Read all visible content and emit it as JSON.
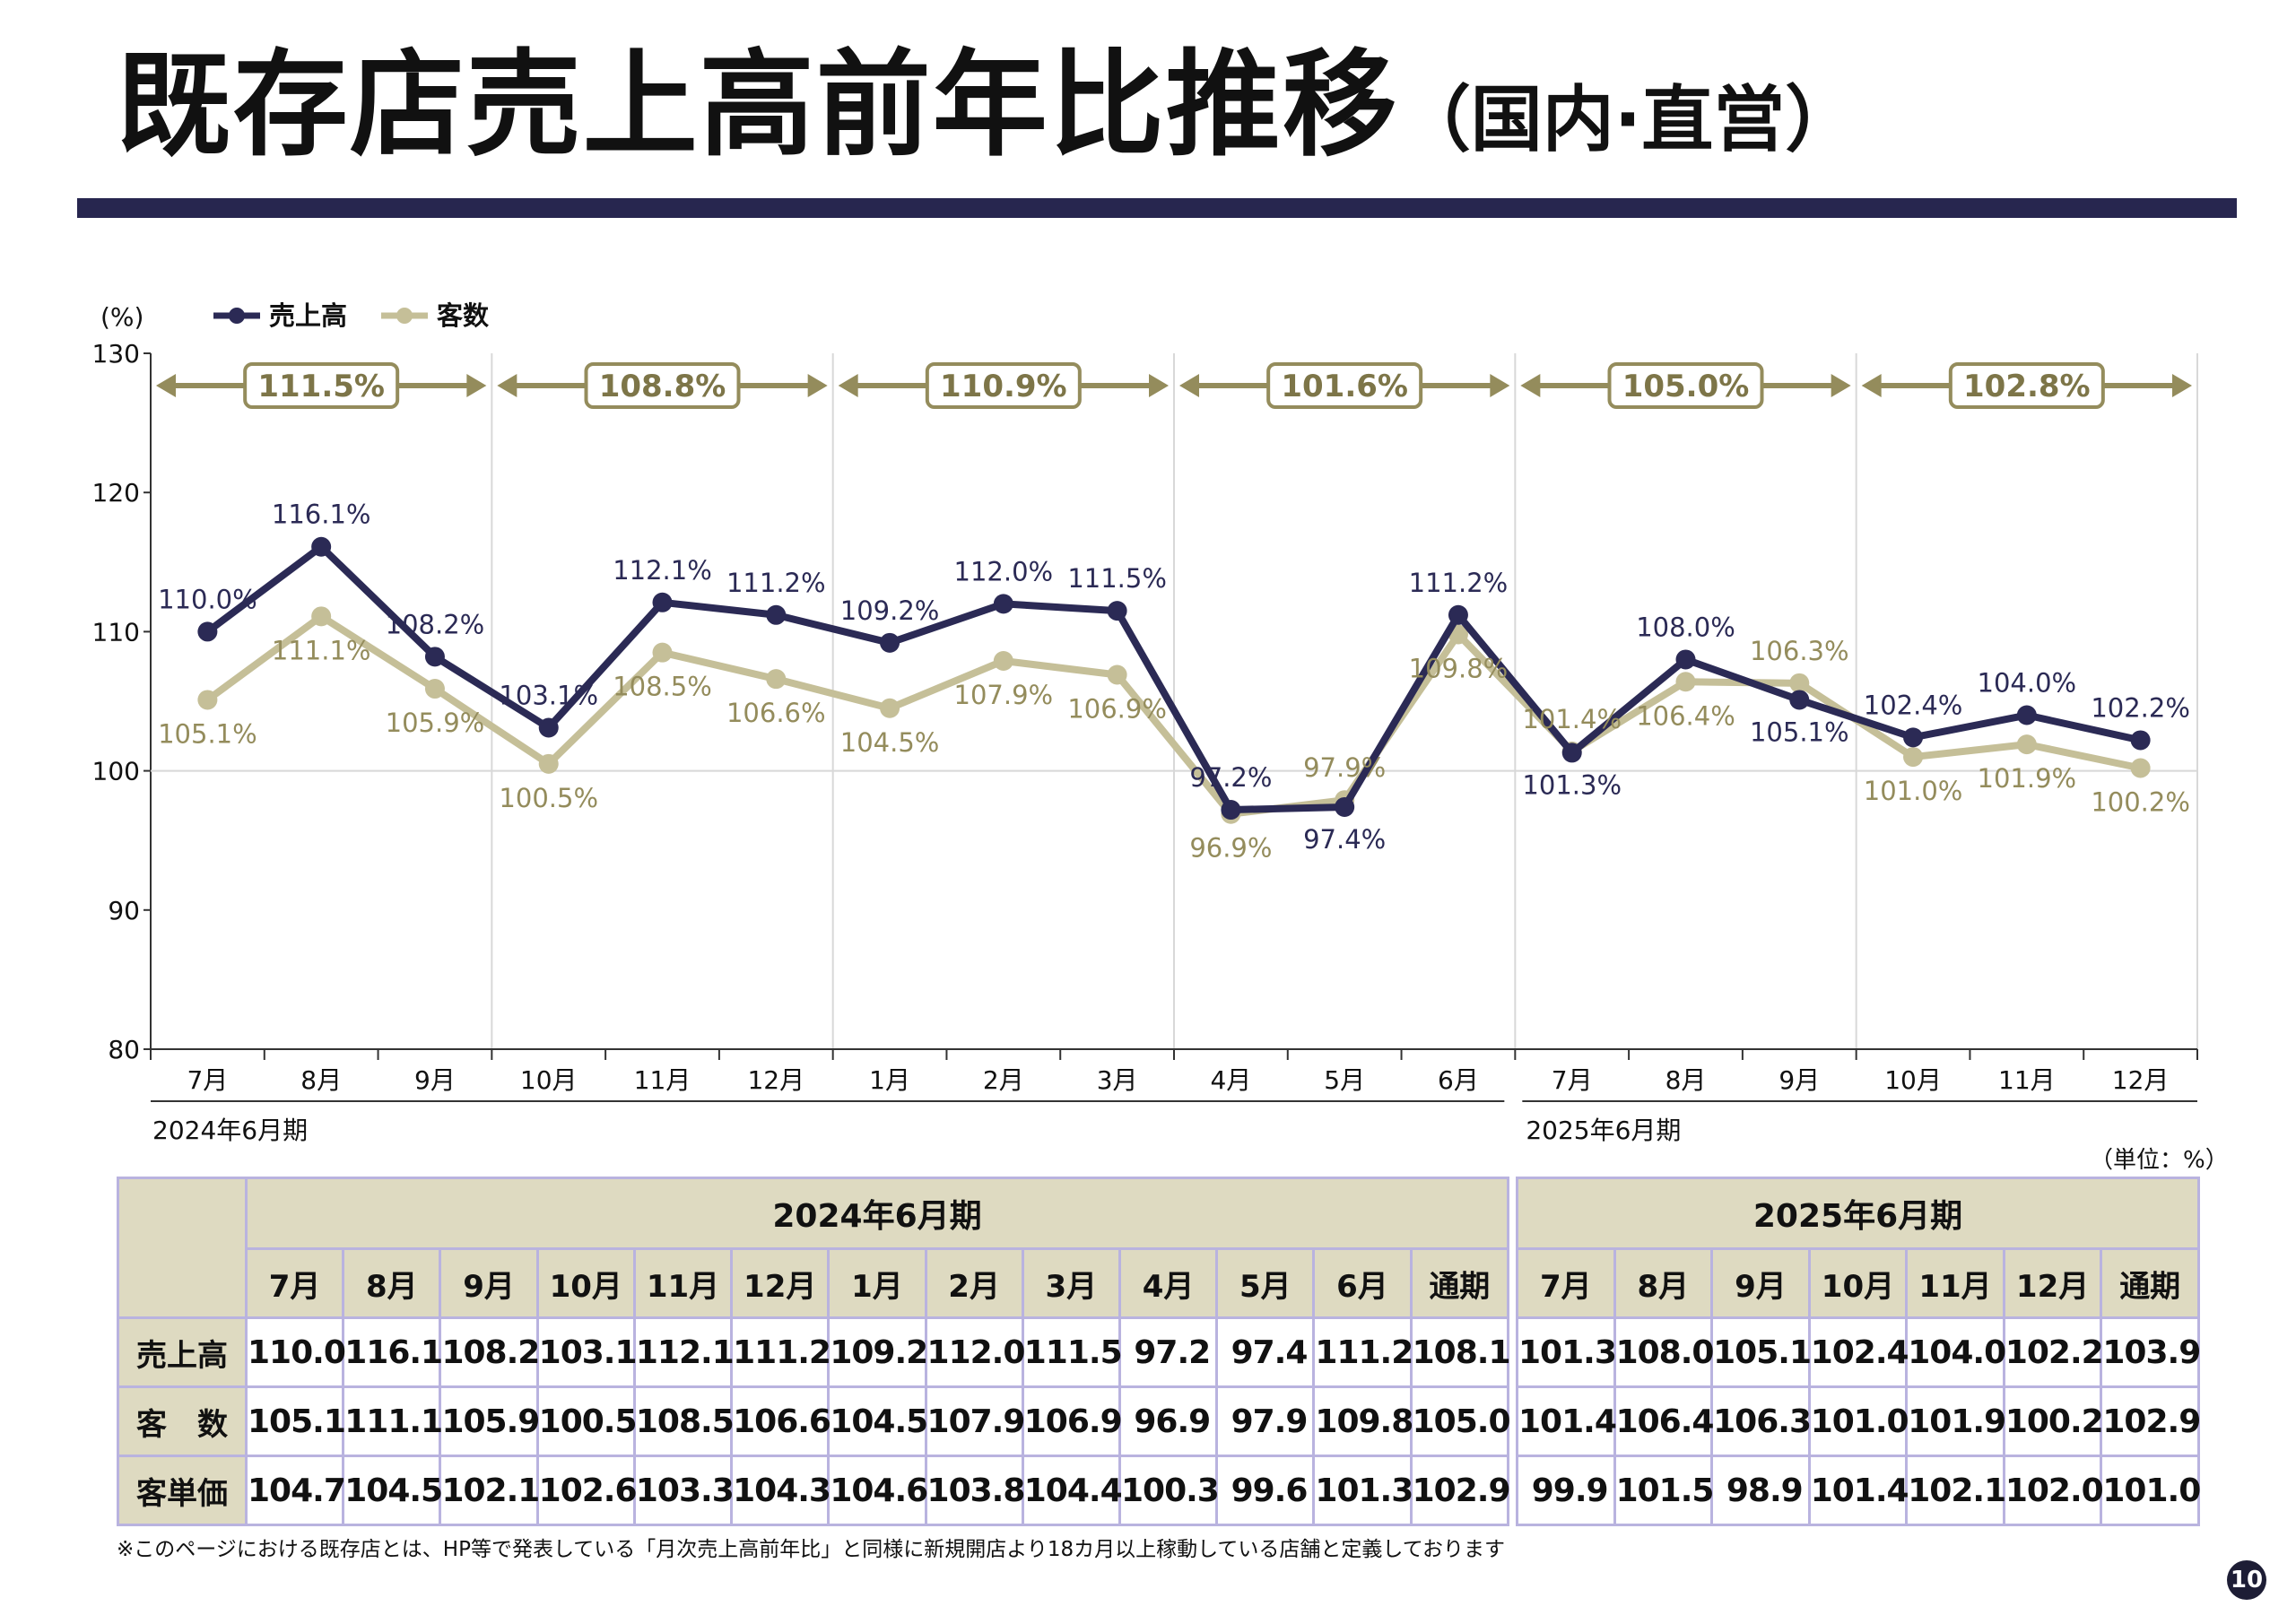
{
  "page": {
    "title_main": "既存店売上高前年比推移",
    "title_sub": "（国内·直営）",
    "unit_note": "（単位：%）",
    "footnote": "※このページにおける既存店とは、HP等で発表している「月次売上高前年比」と同様に新規開店より18カ月以上稼動している店舗と定義しております",
    "page_number": "10"
  },
  "chart_data": {
    "type": "line",
    "ylabel": "(%)",
    "ylim": [
      80,
      130
    ],
    "yticks": [
      80,
      90,
      100,
      110,
      120,
      130
    ],
    "categories": [
      "7月",
      "8月",
      "9月",
      "10月",
      "11月",
      "12月",
      "1月",
      "2月",
      "3月",
      "4月",
      "5月",
      "6月",
      "7月",
      "8月",
      "9月",
      "10月",
      "11月",
      "12月"
    ],
    "series": [
      {
        "name": "売上高",
        "color": "#2b2a55",
        "values": [
          110.0,
          116.1,
          108.2,
          103.1,
          112.1,
          111.2,
          109.2,
          112.0,
          111.5,
          97.2,
          97.4,
          111.2,
          101.3,
          108.0,
          105.1,
          102.4,
          104.0,
          102.2
        ],
        "labels": [
          "110.0%",
          "116.1%",
          "108.2%",
          "103.1%",
          "112.1%",
          "111.2%",
          "109.2%",
          "112.0%",
          "111.5%",
          "97.2%",
          "97.4%",
          "111.2%",
          "101.3%",
          "108.0%",
          "105.1%",
          "102.4%",
          "104.0%",
          "102.2%"
        ]
      },
      {
        "name": "客数",
        "color": "#c5bf98",
        "values": [
          105.1,
          111.1,
          105.9,
          100.5,
          108.5,
          106.6,
          104.5,
          107.9,
          106.9,
          96.9,
          97.9,
          109.8,
          101.4,
          106.4,
          106.3,
          101.0,
          101.9,
          100.2
        ],
        "labels": [
          "105.1%",
          "111.1%",
          "105.9%",
          "100.5%",
          "108.5%",
          "106.6%",
          "104.5%",
          "107.9%",
          "106.9%",
          "96.9%",
          "97.9%",
          "109.8%",
          "101.4%",
          "106.4%",
          "106.3%",
          "101.0%",
          "101.9%",
          "100.2%"
        ]
      }
    ],
    "quarter_brackets": [
      "111.5%",
      "108.8%",
      "110.9%",
      "101.6%",
      "105.0%",
      "102.8%"
    ],
    "period_labels": [
      "2024年6月期",
      "2025年6月期"
    ],
    "grid": "horizontal at 100, vertical at quarter boundaries",
    "legend_position": "top-left"
  },
  "table": {
    "periods": [
      {
        "label": "2024年6月期",
        "months": [
          "7月",
          "8月",
          "9月",
          "10月",
          "11月",
          "12月",
          "1月",
          "2月",
          "3月",
          "4月",
          "5月",
          "6月",
          "通期"
        ]
      },
      {
        "label": "2025年6月期",
        "months": [
          "7月",
          "8月",
          "9月",
          "10月",
          "11月",
          "12月",
          "通期"
        ]
      }
    ],
    "rows": [
      {
        "label": "売上高",
        "p1": [
          "110.0",
          "116.1",
          "108.2",
          "103.1",
          "112.1",
          "111.2",
          "109.2",
          "112.0",
          "111.5",
          "97.2",
          "97.4",
          "111.2",
          "108.1"
        ],
        "p2": [
          "101.3",
          "108.0",
          "105.1",
          "102.4",
          "104.0",
          "102.2",
          "103.9"
        ]
      },
      {
        "label": "客　数",
        "p1": [
          "105.1",
          "111.1",
          "105.9",
          "100.5",
          "108.5",
          "106.6",
          "104.5",
          "107.9",
          "106.9",
          "96.9",
          "97.9",
          "109.8",
          "105.0"
        ],
        "p2": [
          "101.4",
          "106.4",
          "106.3",
          "101.0",
          "101.9",
          "100.2",
          "102.9"
        ]
      },
      {
        "label": "客単価",
        "p1": [
          "104.7",
          "104.5",
          "102.1",
          "102.6",
          "103.3",
          "104.3",
          "104.6",
          "103.8",
          "104.4",
          "100.3",
          "99.6",
          "101.3",
          "102.9"
        ],
        "p2": [
          "99.9",
          "101.5",
          "98.9",
          "101.4",
          "102.1",
          "102.0",
          "101.0"
        ]
      }
    ]
  }
}
